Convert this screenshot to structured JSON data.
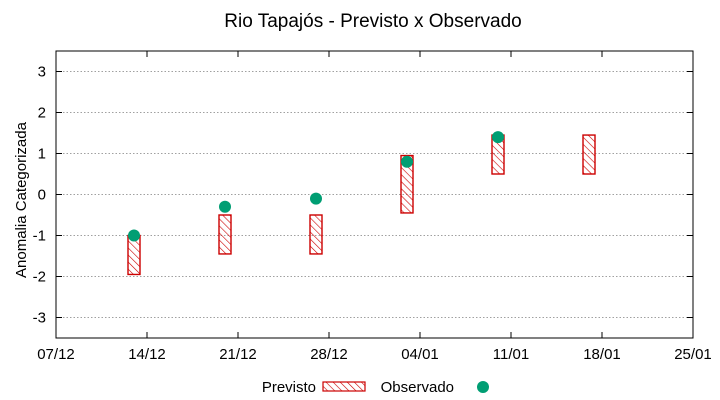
{
  "chart_data": {
    "type": "range-bar-with-points",
    "title": "Rio Tapajós - Previsto x Observado",
    "ylabel": "Anomalia Categorizada",
    "xlabel": "",
    "ylim": [
      -3.5,
      3.5
    ],
    "yticks": [
      -3,
      -2,
      -1,
      0,
      1,
      2,
      3
    ],
    "xticks": [
      "07/12",
      "14/12",
      "21/12",
      "28/12",
      "04/01",
      "11/01",
      "18/01",
      "25/01"
    ],
    "xrange_days": [
      0,
      49
    ],
    "grid": true,
    "series": [
      {
        "name": "Previsto",
        "kind": "range-box",
        "color": "#cc0000",
        "points": [
          {
            "day": 6,
            "low": -1.95,
            "high": -1.0
          },
          {
            "day": 13,
            "low": -1.45,
            "high": -0.5
          },
          {
            "day": 20,
            "low": -1.45,
            "high": -0.5
          },
          {
            "day": 27,
            "low": -0.45,
            "high": 0.95
          },
          {
            "day": 34,
            "low": 0.5,
            "high": 1.45
          },
          {
            "day": 41,
            "low": 0.5,
            "high": 1.45
          }
        ]
      },
      {
        "name": "Observado",
        "kind": "point",
        "color": "#009e73",
        "points": [
          {
            "day": 6,
            "value": -1.0
          },
          {
            "day": 13,
            "value": -0.3
          },
          {
            "day": 20,
            "value": -0.1
          },
          {
            "day": 27,
            "value": 0.8
          },
          {
            "day": 34,
            "value": 1.4
          }
        ]
      }
    ],
    "legend": {
      "position": "bottom-center",
      "entries": [
        "Previsto",
        "Observado"
      ]
    }
  }
}
